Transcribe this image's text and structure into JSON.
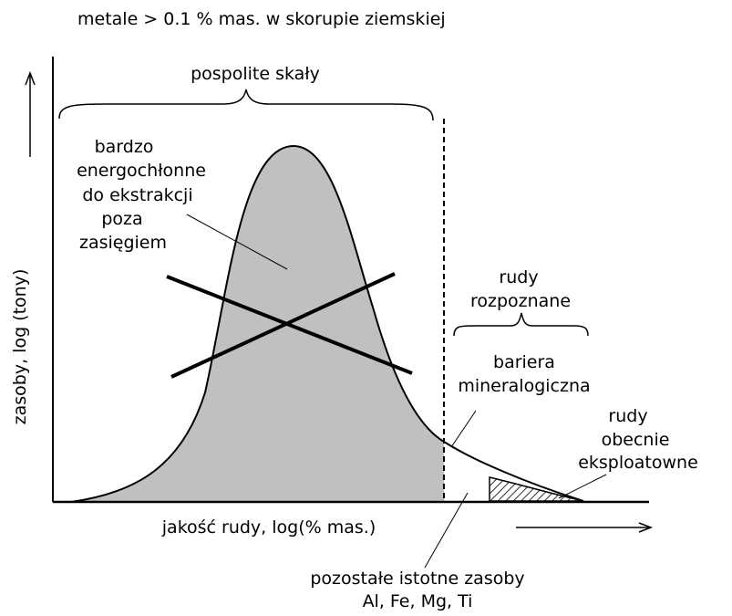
{
  "title": "metale > 0.1 % mas. w skorupie ziemskiej",
  "axes": {
    "x_label": "jakość rudy, log(% mas.)",
    "y_label": "zasoby, log (tony)"
  },
  "labels": {
    "common_rocks": "pospolite skały",
    "energy_intensive": [
      "bardzo",
      "energochłonne",
      "do ekstrakcji",
      "poza",
      "zasięgiem"
    ],
    "identified_ores": [
      "rudy",
      "rozpoznane"
    ],
    "mineralogical_barrier": [
      "bariera",
      "mineralogiczna"
    ],
    "exploited_ores": [
      "rudy",
      "obecnie",
      "eksploatowne"
    ],
    "remaining_resources": [
      "pozostałe istotne zasoby",
      "Al, Fe, Mg, Ti"
    ]
  },
  "colors": {
    "curve_fill": "#c0c0c0",
    "line": "#000000",
    "background": "#ffffff"
  }
}
